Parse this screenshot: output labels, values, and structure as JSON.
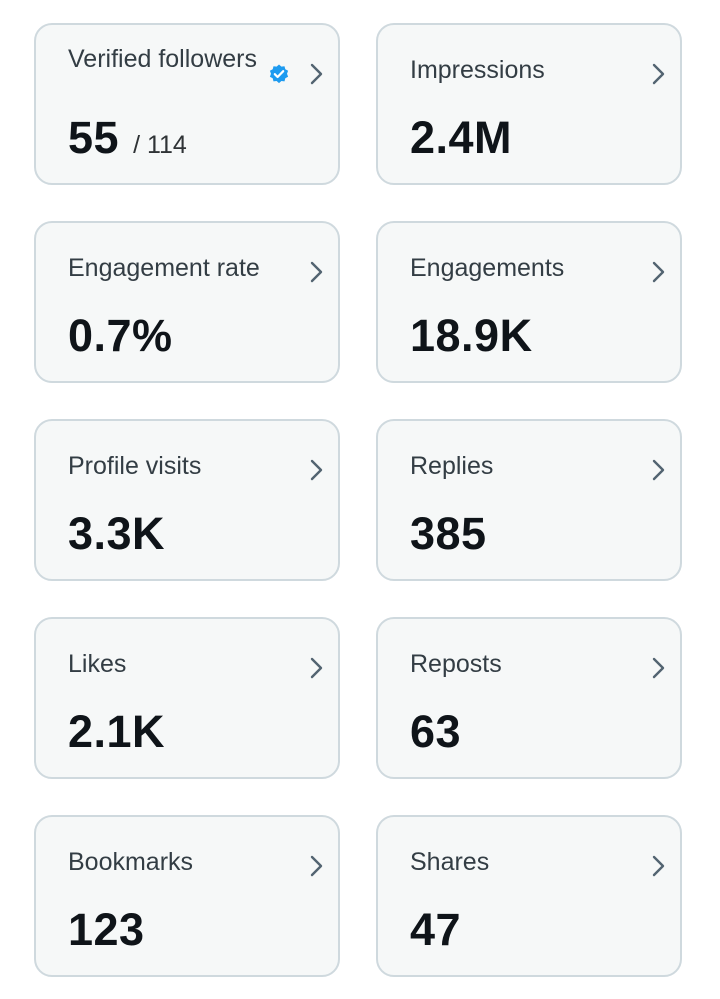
{
  "metrics": [
    {
      "label": "Verified followers",
      "value": "55",
      "sub": "/ 114",
      "verified_icon": "verified-badge-icon",
      "accent": "#1d9bf0"
    },
    {
      "label": "Impressions",
      "value": "2.4M"
    },
    {
      "label": "Engagement rate",
      "value": "0.7%"
    },
    {
      "label": "Engagements",
      "value": "18.9K"
    },
    {
      "label": "Profile visits",
      "value": "3.3K"
    },
    {
      "label": "Replies",
      "value": "385"
    },
    {
      "label": "Likes",
      "value": "2.1K"
    },
    {
      "label": "Reposts",
      "value": "63"
    },
    {
      "label": "Bookmarks",
      "value": "123"
    },
    {
      "label": "Shares",
      "value": "47"
    }
  ],
  "icons": {
    "chevron": "chevron-right-icon"
  }
}
